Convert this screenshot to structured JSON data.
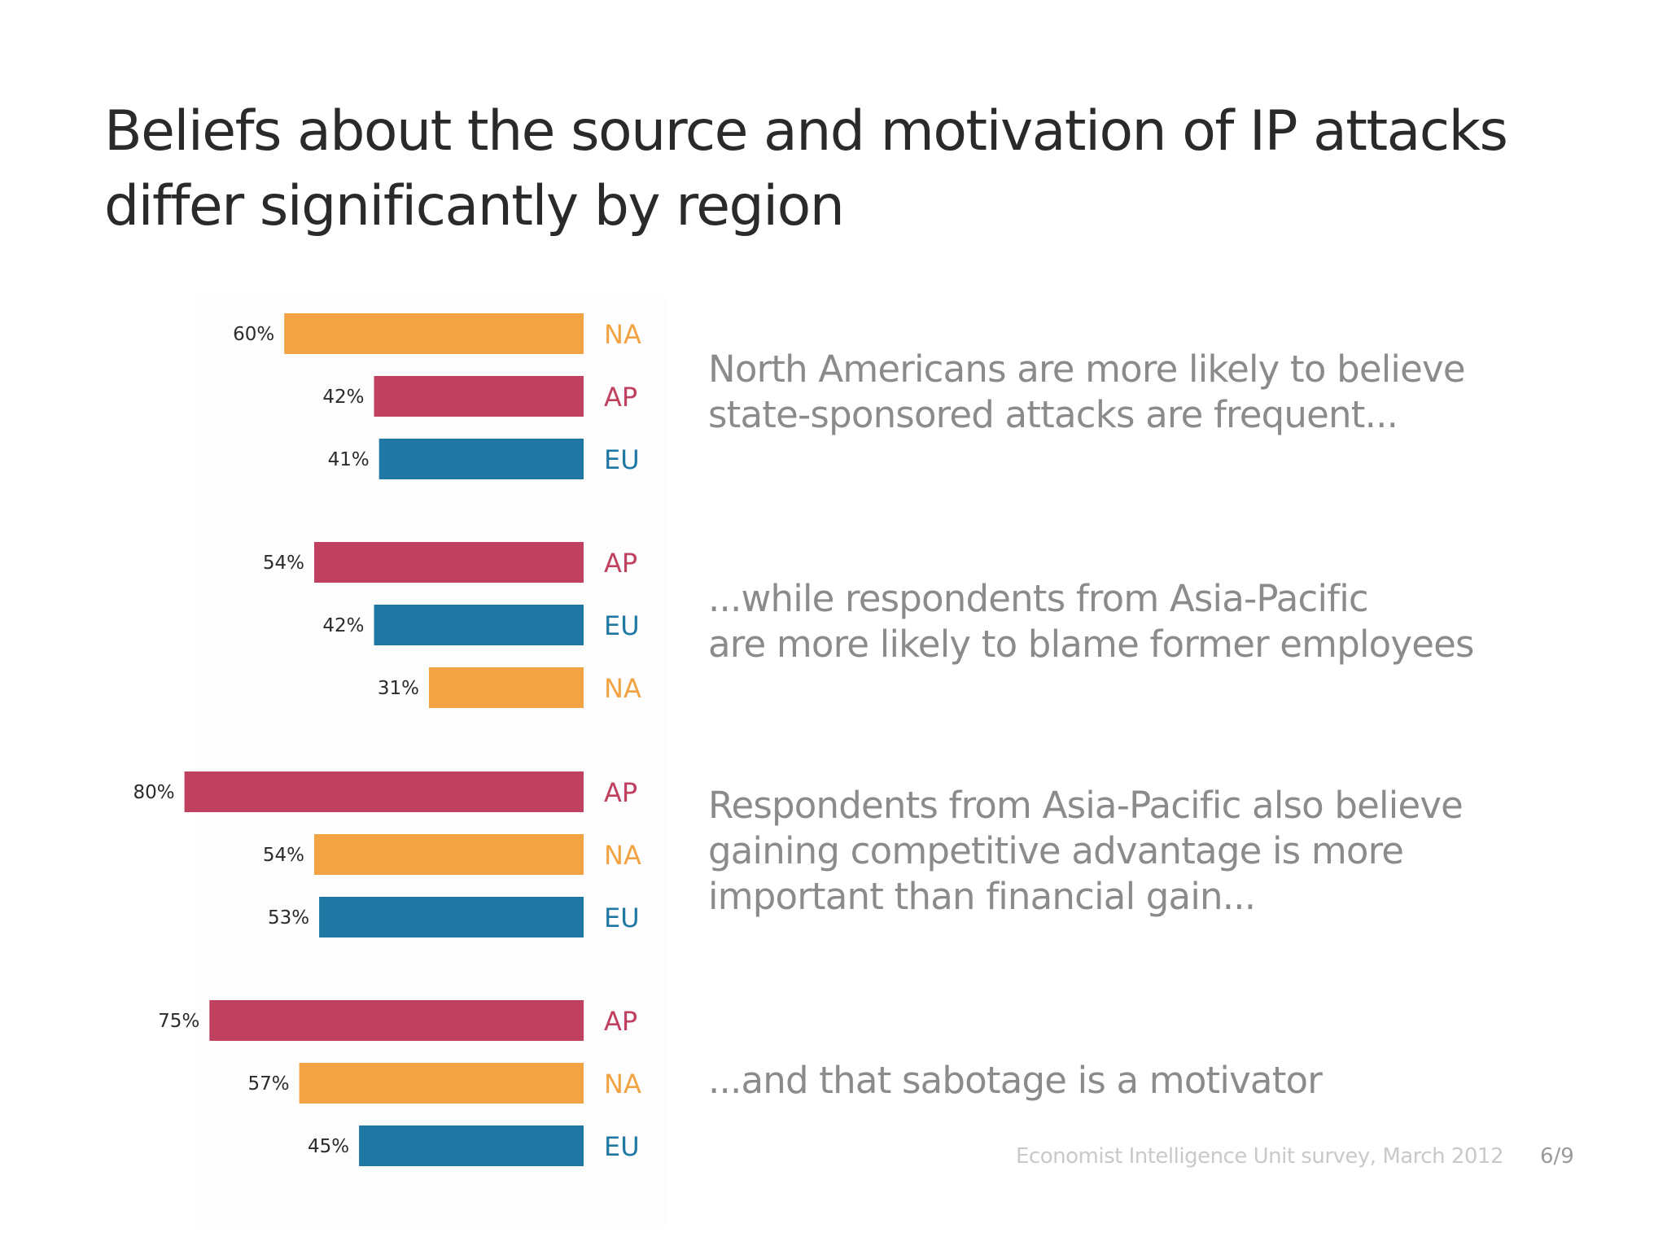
{
  "title": "Beliefs about the source and motivation of IP attacks differ significantly by region",
  "colors": {
    "NA": "#f2a344",
    "AP": "#c0405f",
    "EU": "#1f78a4"
  },
  "chart_data": {
    "type": "bar",
    "orientation": "horizontal",
    "unit": "%",
    "xlim": [
      0,
      100
    ],
    "groups": [
      {
        "caption": "North Americans are more likely to believe\nstate-sponsored attacks are frequent...",
        "bars": [
          {
            "region": "NA",
            "value": 60,
            "label": "60%"
          },
          {
            "region": "AP",
            "value": 42,
            "label": "42%"
          },
          {
            "region": "EU",
            "value": 41,
            "label": "41%"
          }
        ]
      },
      {
        "caption": "...while respondents from Asia-Pacific\nare more likely to blame former employees",
        "bars": [
          {
            "region": "AP",
            "value": 54,
            "label": "54%"
          },
          {
            "region": "EU",
            "value": 42,
            "label": "42%"
          },
          {
            "region": "NA",
            "value": 31,
            "label": "31%"
          }
        ]
      },
      {
        "caption": "Respondents from Asia-Pacific also believe\ngaining competitive advantage is more\nimportant than financial gain...",
        "bars": [
          {
            "region": "AP",
            "value": 80,
            "label": "80%"
          },
          {
            "region": "NA",
            "value": 54,
            "label": "54%"
          },
          {
            "region": "EU",
            "value": 53,
            "label": "53%"
          }
        ]
      },
      {
        "caption": "...and that sabotage is a motivator",
        "bars": [
          {
            "region": "AP",
            "value": 75,
            "label": "75%"
          },
          {
            "region": "NA",
            "value": 57,
            "label": "57%"
          },
          {
            "region": "EU",
            "value": 45,
            "label": "45%"
          }
        ]
      }
    ]
  },
  "footer": {
    "source": "Economist Intelligence Unit survey, March 2012",
    "page": "6/9"
  }
}
